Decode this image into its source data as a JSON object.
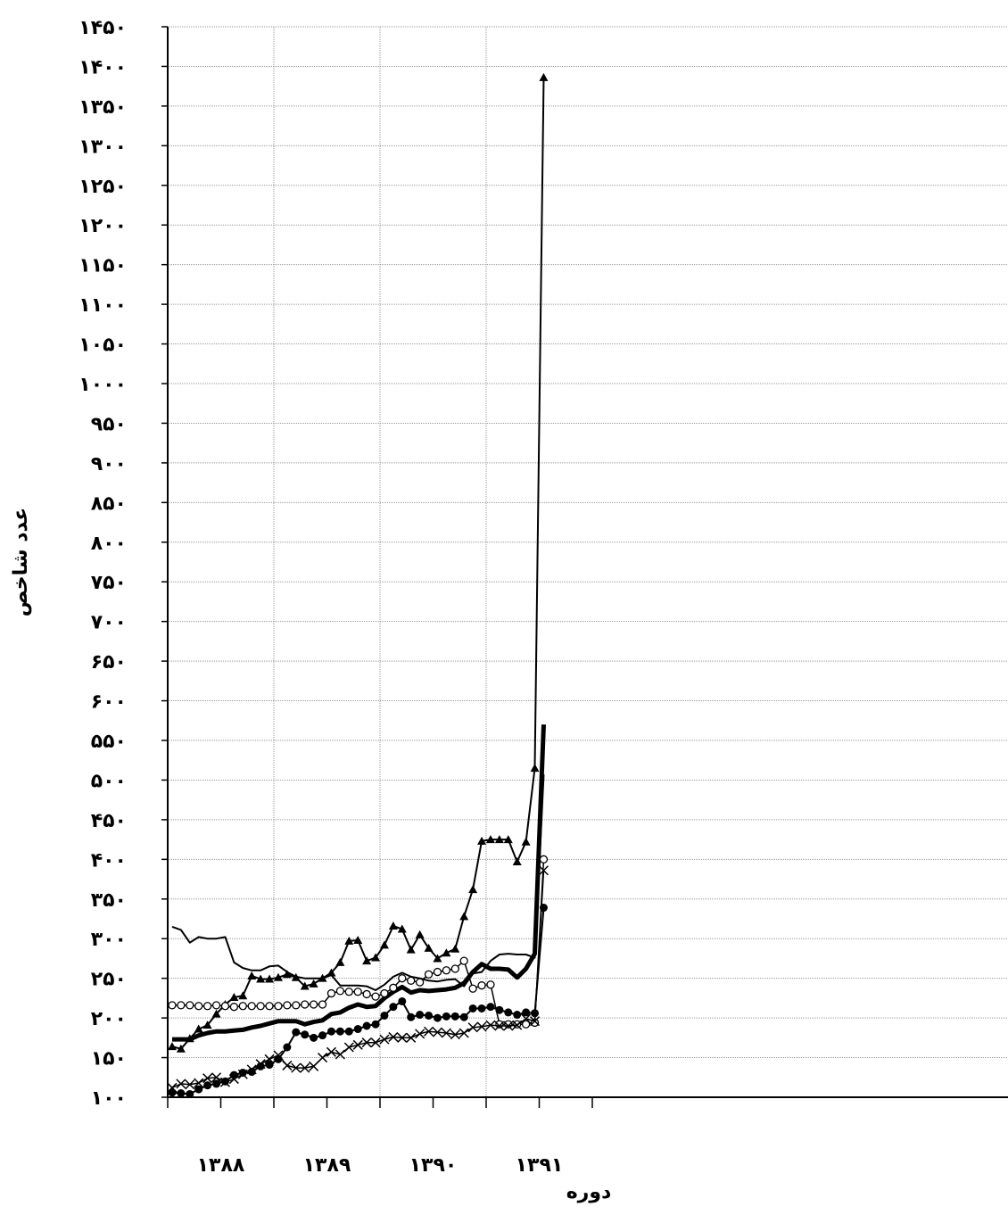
{
  "chart_data": {
    "type": "line",
    "title": "",
    "xlabel": "دوره",
    "ylabel": "عدد شاخص",
    "ylim": [
      100,
      1450
    ],
    "y_ticks": [
      100,
      150,
      200,
      250,
      300,
      350,
      400,
      450,
      500,
      550,
      600,
      650,
      700,
      750,
      800,
      850,
      900,
      950,
      1000,
      1050,
      1100,
      1150,
      1200,
      1250,
      1300,
      1350,
      1400,
      1450
    ],
    "y_tick_labels": [
      "۱۰۰",
      "۱۵۰",
      "۲۰۰",
      "۲۵۰",
      "۳۰۰",
      "۳۵۰",
      "۴۰۰",
      "۴۵۰",
      "۵۰۰",
      "۵۵۰",
      "۶۰۰",
      "۶۵۰",
      "۷۰۰",
      "۷۵۰",
      "۸۰۰",
      "۸۵۰",
      "۹۰۰",
      "۹۵۰",
      "۱۰۰۰",
      "۱۰۵۰",
      "۱۱۰۰",
      "۱۱۵۰",
      "۱۲۰۰",
      "۱۲۵۰",
      "۱۳۰۰",
      "۱۳۵۰",
      "۱۴۰۰",
      "۱۴۵۰"
    ],
    "x_range": [
      0,
      48
    ],
    "x_category_labels": [
      {
        "label": "۱۳۸۸",
        "center": 6
      },
      {
        "label": "۱۳۸۹",
        "center": 18
      },
      {
        "label": "۱۳۹۰",
        "center": 30
      },
      {
        "label": "۱۳۹۱",
        "center": 42
      }
    ],
    "grid": true,
    "series": [
      {
        "marker": "triangle",
        "stroke_width": 2,
        "x": [
          0.5,
          1.5,
          2.5,
          3.5,
          4.5,
          5.5,
          6.5,
          7.5,
          8.5,
          9.5,
          10.5,
          11.5,
          12.5,
          13.5,
          14.5,
          15.5,
          16.5,
          17.5,
          18.5,
          19.5,
          20.5,
          21.5,
          22.5,
          23.5,
          24.5,
          25.5,
          26.5,
          27.5,
          28.5,
          29.5,
          30.5,
          31.5,
          32.5,
          33.5,
          34.5,
          35.5,
          36.5,
          37.5,
          38.5,
          39.5,
          40.5,
          41.5,
          42.5
        ],
        "values": [
          164,
          161,
          174,
          186,
          191,
          205,
          217,
          226,
          228,
          253,
          249,
          249,
          251,
          255,
          251,
          240,
          243,
          250,
          257,
          270,
          297,
          298,
          272,
          276,
          292,
          316,
          312,
          286,
          305,
          288,
          275,
          282,
          287,
          328,
          362,
          423,
          425,
          425,
          425,
          397,
          422,
          515,
          1386
        ]
      },
      {
        "marker": "none",
        "stroke_width": 2,
        "x": [
          0.5,
          1.5,
          2.5,
          3.5,
          4.5,
          5.5,
          6.5,
          7.5,
          8.5,
          9.5,
          10.5,
          11.5,
          12.5,
          13.5,
          14.5,
          15.5,
          16.5,
          17.5,
          18.5,
          19.5,
          20.5,
          21.5,
          22.5,
          23.5,
          24.5,
          25.5,
          26.5,
          27.5,
          28.5,
          29.5,
          30.5,
          31.5,
          32.5,
          33.5,
          34.5,
          35.5,
          36.5,
          37.5,
          38.5,
          39.5,
          40.5,
          41.5,
          42.5
        ],
        "values": [
          315,
          311,
          295,
          302,
          300,
          300,
          302,
          270,
          263,
          260,
          260,
          265,
          266,
          258,
          252,
          250,
          250,
          250,
          254,
          241,
          241,
          241,
          240,
          235,
          242,
          252,
          257,
          252,
          250,
          247,
          246,
          248,
          249,
          240,
          256,
          258,
          272,
          280,
          281,
          280,
          280,
          276,
          507
        ]
      },
      {
        "marker": "none",
        "stroke_width": 5,
        "x": [
          0.5,
          1.5,
          2.5,
          3.5,
          4.5,
          5.5,
          6.5,
          7.5,
          8.5,
          9.5,
          10.5,
          11.5,
          12.5,
          13.5,
          14.5,
          15.5,
          16.5,
          17.5,
          18.5,
          19.5,
          20.5,
          21.5,
          22.5,
          23.5,
          24.5,
          25.5,
          26.5,
          27.5,
          28.5,
          29.5,
          30.5,
          31.5,
          32.5,
          33.5,
          34.5,
          35.5,
          36.5,
          37.5,
          38.5,
          39.5,
          40.5,
          41.5,
          42.5
        ],
        "values": [
          173,
          173,
          173,
          178,
          181,
          183,
          183,
          184,
          185,
          188,
          190,
          193,
          196,
          196,
          196,
          192,
          195,
          197,
          205,
          207,
          213,
          217,
          214,
          215,
          225,
          233,
          239,
          232,
          235,
          234,
          235,
          236,
          238,
          244,
          258,
          268,
          262,
          262,
          261,
          251,
          262,
          281,
          570
        ]
      },
      {
        "marker": "circle-open",
        "stroke_width": 1.5,
        "x": [
          0.5,
          1.5,
          2.5,
          3.5,
          4.5,
          5.5,
          6.5,
          7.5,
          8.5,
          9.5,
          10.5,
          11.5,
          12.5,
          13.5,
          14.5,
          15.5,
          16.5,
          17.5,
          18.5,
          19.5,
          20.5,
          21.5,
          22.5,
          23.5,
          24.5,
          25.5,
          26.5,
          27.5,
          28.5,
          29.5,
          30.5,
          31.5,
          32.5,
          33.5,
          34.5,
          35.5,
          36.5,
          37.5,
          38.5,
          39.5,
          40.5,
          41.5,
          42.5
        ],
        "values": [
          216,
          216,
          216,
          215,
          215,
          216,
          215,
          214,
          215,
          215,
          215,
          215,
          215,
          216,
          216,
          217,
          217,
          217,
          231,
          234,
          233,
          233,
          230,
          227,
          231,
          238,
          250,
          247,
          245,
          255,
          258,
          260,
          262,
          272,
          237,
          241,
          242,
          192,
          192,
          192,
          192,
          194,
          400
        ]
      },
      {
        "marker": "circle-filled",
        "stroke_width": 2,
        "x": [
          0.5,
          1.5,
          2.5,
          3.5,
          4.5,
          5.5,
          6.5,
          7.5,
          8.5,
          9.5,
          10.5,
          11.5,
          12.5,
          13.5,
          14.5,
          15.5,
          16.5,
          17.5,
          18.5,
          19.5,
          20.5,
          21.5,
          22.5,
          23.5,
          24.5,
          25.5,
          26.5,
          27.5,
          28.5,
          29.5,
          30.5,
          31.5,
          32.5,
          33.5,
          34.5,
          35.5,
          36.5,
          37.5,
          38.5,
          39.5,
          40.5,
          41.5,
          42.5
        ],
        "values": [
          106,
          105,
          104,
          110,
          115,
          117,
          120,
          128,
          131,
          132,
          139,
          141,
          148,
          163,
          182,
          179,
          175,
          178,
          183,
          183,
          183,
          186,
          190,
          192,
          203,
          214,
          221,
          201,
          204,
          203,
          200,
          202,
          202,
          201,
          212,
          212,
          214,
          210,
          207,
          204,
          207,
          206,
          339
        ]
      },
      {
        "marker": "x",
        "stroke_width": 1.5,
        "x": [
          0.5,
          1.5,
          2.5,
          3.5,
          4.5,
          5.5,
          6.5,
          7.5,
          8.5,
          9.5,
          10.5,
          11.5,
          12.5,
          13.5,
          14.5,
          15.5,
          16.5,
          17.5,
          18.5,
          19.5,
          20.5,
          21.5,
          22.5,
          23.5,
          24.5,
          25.5,
          26.5,
          27.5,
          28.5,
          29.5,
          30.5,
          31.5,
          32.5,
          33.5,
          34.5,
          35.5,
          36.5,
          37.5,
          38.5,
          39.5,
          40.5,
          41.5,
          42.5
        ],
        "values": [
          112,
          117,
          116,
          118,
          124,
          125,
          119,
          123,
          129,
          135,
          142,
          148,
          153,
          140,
          137,
          137,
          139,
          150,
          157,
          154,
          163,
          166,
          169,
          169,
          173,
          176,
          175,
          175,
          180,
          183,
          182,
          181,
          179,
          181,
          188,
          189,
          191,
          190,
          190,
          191,
          199,
          196,
          386
        ]
      }
    ]
  }
}
